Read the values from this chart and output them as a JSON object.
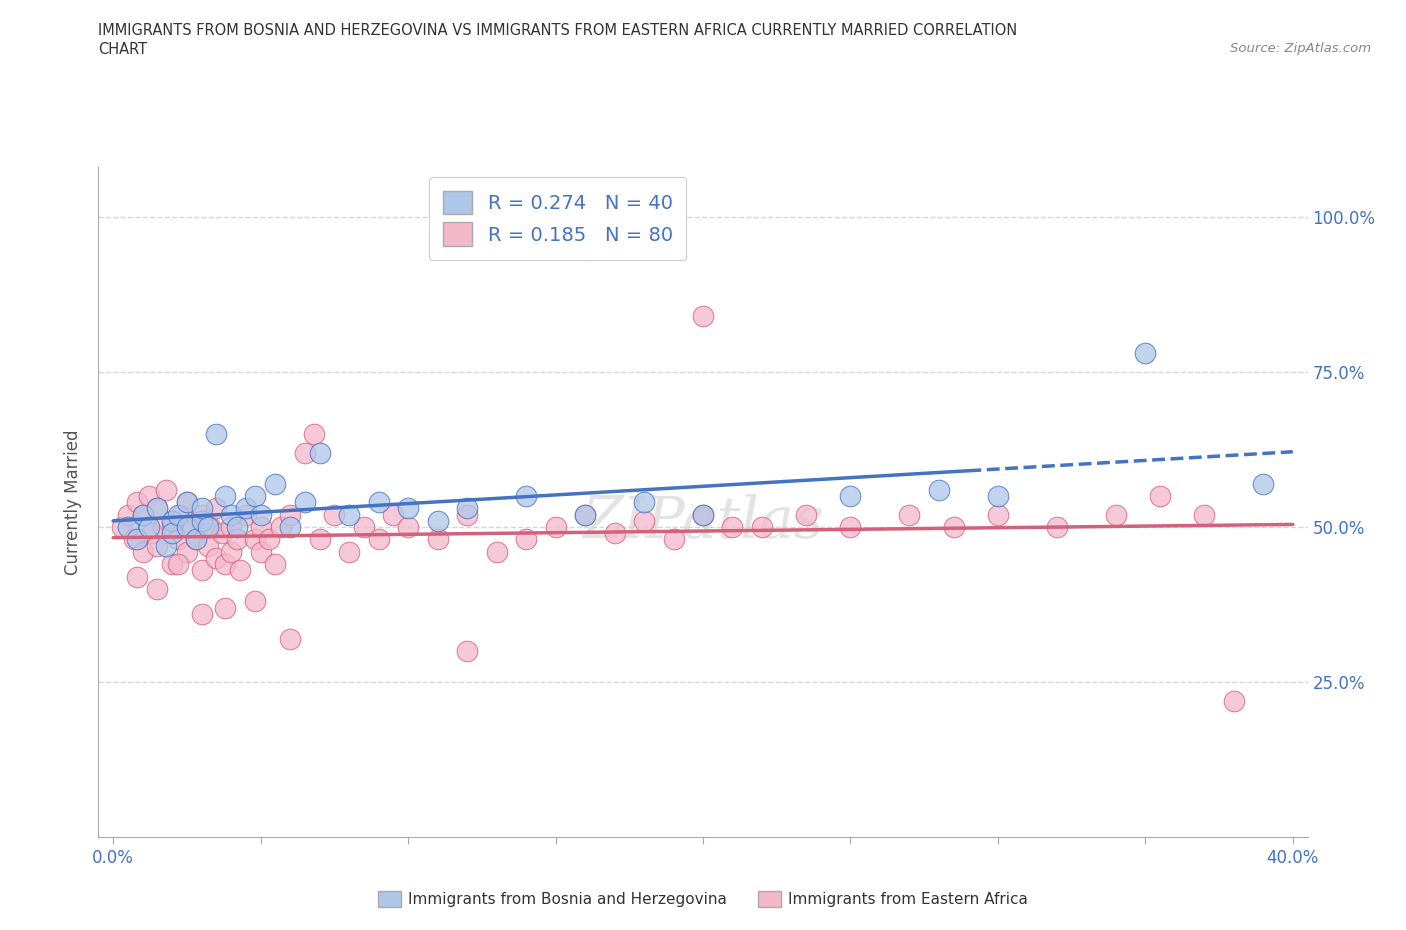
{
  "title_line1": "IMMIGRANTS FROM BOSNIA AND HERZEGOVINA VS IMMIGRANTS FROM EASTERN AFRICA CURRENTLY MARRIED CORRELATION",
  "title_line2": "CHART",
  "source_text": "Source: ZipAtlas.com",
  "ylabel": "Currently Married",
  "grid_color": "#cccccc",
  "background_color": "#ffffff",
  "blue_color": "#aec6e8",
  "blue_line_color": "#4472c4",
  "pink_color": "#f4b8cb",
  "pink_line_color": "#d4607a",
  "R_blue": 0.274,
  "N_blue": 40,
  "R_pink": 0.185,
  "N_pink": 80,
  "watermark": "ZIPatlas",
  "blue_scatter_x": [
    0.005,
    0.008,
    0.01,
    0.012,
    0.015,
    0.018,
    0.02,
    0.02,
    0.022,
    0.025,
    0.025,
    0.028,
    0.03,
    0.03,
    0.032,
    0.035,
    0.038,
    0.04,
    0.042,
    0.045,
    0.048,
    0.05,
    0.055,
    0.06,
    0.065,
    0.07,
    0.08,
    0.09,
    0.1,
    0.11,
    0.12,
    0.14,
    0.16,
    0.18,
    0.2,
    0.25,
    0.28,
    0.3,
    0.35,
    0.39
  ],
  "blue_scatter_y": [
    0.5,
    0.48,
    0.52,
    0.5,
    0.53,
    0.47,
    0.51,
    0.49,
    0.52,
    0.5,
    0.54,
    0.48,
    0.51,
    0.53,
    0.5,
    0.65,
    0.55,
    0.52,
    0.5,
    0.53,
    0.55,
    0.52,
    0.57,
    0.5,
    0.54,
    0.62,
    0.52,
    0.54,
    0.53,
    0.51,
    0.53,
    0.55,
    0.52,
    0.54,
    0.52,
    0.55,
    0.56,
    0.55,
    0.78,
    0.57
  ],
  "pink_scatter_x": [
    0.003,
    0.005,
    0.007,
    0.008,
    0.01,
    0.01,
    0.012,
    0.013,
    0.015,
    0.015,
    0.017,
    0.018,
    0.02,
    0.02,
    0.022,
    0.023,
    0.025,
    0.025,
    0.027,
    0.028,
    0.03,
    0.03,
    0.032,
    0.033,
    0.035,
    0.035,
    0.037,
    0.038,
    0.04,
    0.04,
    0.042,
    0.043,
    0.045,
    0.048,
    0.05,
    0.05,
    0.053,
    0.055,
    0.057,
    0.06,
    0.065,
    0.068,
    0.07,
    0.075,
    0.08,
    0.085,
    0.09,
    0.095,
    0.1,
    0.11,
    0.12,
    0.13,
    0.14,
    0.15,
    0.16,
    0.17,
    0.18,
    0.19,
    0.2,
    0.21,
    0.22,
    0.235,
    0.25,
    0.27,
    0.285,
    0.3,
    0.32,
    0.34,
    0.355,
    0.37,
    0.008,
    0.015,
    0.022,
    0.03,
    0.038,
    0.048,
    0.06,
    0.12,
    0.2,
    0.38
  ],
  "pink_scatter_y": [
    0.5,
    0.52,
    0.48,
    0.54,
    0.46,
    0.52,
    0.55,
    0.49,
    0.47,
    0.53,
    0.5,
    0.56,
    0.44,
    0.5,
    0.48,
    0.52,
    0.46,
    0.54,
    0.5,
    0.48,
    0.43,
    0.52,
    0.47,
    0.5,
    0.45,
    0.53,
    0.49,
    0.44,
    0.5,
    0.46,
    0.48,
    0.43,
    0.52,
    0.48,
    0.46,
    0.5,
    0.48,
    0.44,
    0.5,
    0.52,
    0.62,
    0.65,
    0.48,
    0.52,
    0.46,
    0.5,
    0.48,
    0.52,
    0.5,
    0.48,
    0.52,
    0.46,
    0.48,
    0.5,
    0.52,
    0.49,
    0.51,
    0.48,
    0.52,
    0.5,
    0.5,
    0.52,
    0.5,
    0.52,
    0.5,
    0.52,
    0.5,
    0.52,
    0.55,
    0.52,
    0.42,
    0.4,
    0.44,
    0.36,
    0.37,
    0.38,
    0.32,
    0.3,
    0.84,
    0.22
  ]
}
